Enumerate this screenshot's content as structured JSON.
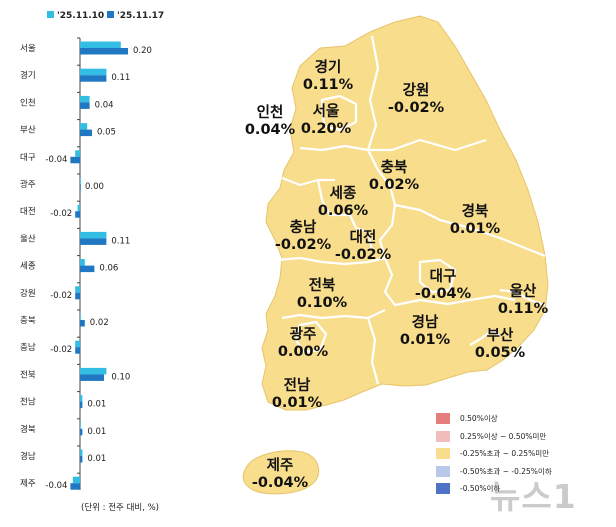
{
  "chart_data": {
    "type": "bar",
    "orientation": "horizontal",
    "series": [
      {
        "name": "'25.11.10",
        "color": "#33bde3"
      },
      {
        "name": "'25.11.17",
        "color": "#1f78c1"
      }
    ],
    "rows": [
      {
        "region": "서울",
        "values": [
          0.17,
          0.2
        ],
        "label": "0.20"
      },
      {
        "region": "경기",
        "values": [
          0.11,
          0.11
        ],
        "label": "0.11"
      },
      {
        "region": "인천",
        "values": [
          0.04,
          0.04
        ],
        "label": "0.04"
      },
      {
        "region": "부산",
        "values": [
          0.03,
          0.05
        ],
        "label": "0.05"
      },
      {
        "region": "대구",
        "values": [
          -0.02,
          -0.04
        ],
        "label": "-0.04"
      },
      {
        "region": "광주",
        "values": [
          0.0,
          0.0
        ],
        "label": "0.00"
      },
      {
        "region": "대전",
        "values": [
          -0.01,
          -0.02
        ],
        "label": "-0.02"
      },
      {
        "region": "울산",
        "values": [
          0.11,
          0.11
        ],
        "label": "0.11"
      },
      {
        "region": "세종",
        "values": [
          0.02,
          0.06
        ],
        "label": "0.06"
      },
      {
        "region": "강원",
        "values": [
          -0.02,
          -0.02
        ],
        "label": "-0.02"
      },
      {
        "region": "충북",
        "values": [
          0.0,
          0.02
        ],
        "label": "0.02"
      },
      {
        "region": "충남",
        "values": [
          -0.02,
          -0.02
        ],
        "label": "-0.02"
      },
      {
        "region": "전북",
        "values": [
          0.11,
          0.1
        ],
        "label": "0.10"
      },
      {
        "region": "전남",
        "values": [
          0.01,
          0.01
        ],
        "label": "0.01"
      },
      {
        "region": "경북",
        "values": [
          0.0,
          0.01
        ],
        "label": "0.01"
      },
      {
        "region": "경남",
        "values": [
          0.01,
          0.01
        ],
        "label": "0.01"
      },
      {
        "region": "제주",
        "values": [
          -0.03,
          -0.04
        ],
        "label": "-0.04"
      }
    ],
    "xlim": [
      -0.05,
      0.21
    ],
    "legend_placement": "top-left"
  },
  "map": {
    "fill": "#f8dd8c",
    "stroke": "#ffffff",
    "regions": [
      {
        "name": "경기",
        "value": "0.11%"
      },
      {
        "name": "강원",
        "value": "-0.02%"
      },
      {
        "name": "인천",
        "value": "0.04%"
      },
      {
        "name": "서울",
        "value": "0.20%"
      },
      {
        "name": "충북",
        "value": "0.02%"
      },
      {
        "name": "세종",
        "value": "0.06%"
      },
      {
        "name": "경북",
        "value": "0.01%"
      },
      {
        "name": "충남",
        "value": "-0.02%"
      },
      {
        "name": "대전",
        "value": "-0.02%"
      },
      {
        "name": "대구",
        "value": "-0.04%"
      },
      {
        "name": "울산",
        "value": "0.11%"
      },
      {
        "name": "전북",
        "value": "0.10%"
      },
      {
        "name": "경남",
        "value": "0.01%"
      },
      {
        "name": "부산",
        "value": "0.05%"
      },
      {
        "name": "광주",
        "value": "0.00%"
      },
      {
        "name": "전남",
        "value": "0.01%"
      },
      {
        "name": "제주",
        "value": "-0.04%"
      }
    ]
  },
  "map_legend": [
    {
      "label": "0.50%이상",
      "color": "#e67c7c"
    },
    {
      "label": "0.25%이상 ~ 0.50%미만",
      "color": "#f3bcbc"
    },
    {
      "label": "-0.25%초과 ~ 0.25%미만",
      "color": "#f8dd8c"
    },
    {
      "label": "-0.50%초과 ~ -0.25%이하",
      "color": "#b9c8e8"
    },
    {
      "label": "-0.50%이하",
      "color": "#4f72c4"
    }
  ],
  "unit_note": "(단위 : 전주 대비, %)",
  "watermark": "뉴스1"
}
